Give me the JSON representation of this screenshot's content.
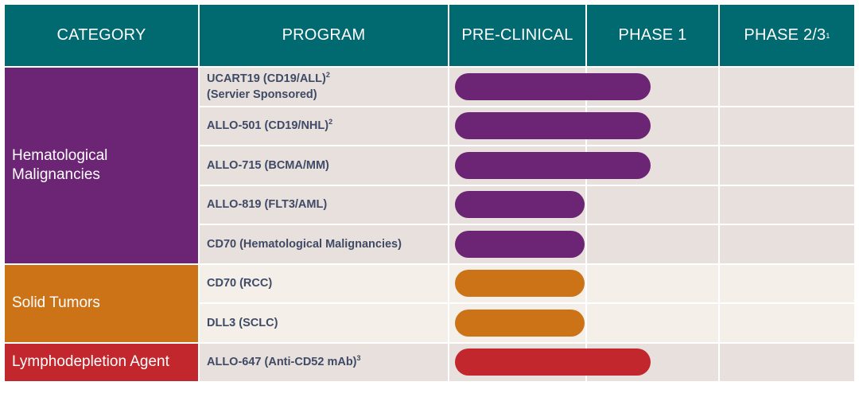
{
  "headers": {
    "category": "CATEGORY",
    "program": "PROGRAM",
    "preclinical": "PRE-CLINICAL",
    "phase1": "PHASE 1",
    "phase23": "PHASE 2/3",
    "phase23_sup": "1"
  },
  "categories": [
    {
      "label_lines": [
        "Hematological",
        "Malignancies"
      ],
      "rows": 5,
      "color": "#6c2574"
    },
    {
      "label_lines": [
        "Solid Tumors"
      ],
      "rows": 2,
      "color": "#cc7318"
    },
    {
      "label_lines": [
        "Lymphodepletion Agent"
      ],
      "rows": 1,
      "color": "#c1272d"
    }
  ],
  "colors": {
    "header_bg": "#006a70",
    "row_heme": "#e8e0dc",
    "row_solid": "#f4efe8",
    "row_lympho": "#e8e0dc"
  },
  "chart_data": {
    "type": "bar",
    "orientation": "horizontal",
    "stages": [
      "PRE-CLINICAL",
      "PHASE 1",
      "PHASE 2/3"
    ],
    "programs": [
      {
        "name": "UCART19 (CD19/ALL)",
        "sup": "2",
        "line2": "(Servier Sponsored)",
        "category": "Hematological Malignancies",
        "progress": 1.5
      },
      {
        "name": "ALLO-501 (CD19/NHL)",
        "sup": "2",
        "line2": "",
        "category": "Hematological Malignancies",
        "progress": 1.5
      },
      {
        "name": "ALLO-715 (BCMA/MM)",
        "sup": "",
        "line2": "",
        "category": "Hematological Malignancies",
        "progress": 1.5
      },
      {
        "name": "ALLO-819 (FLT3/AML)",
        "sup": "",
        "line2": "",
        "category": "Hematological Malignancies",
        "progress": 1.0
      },
      {
        "name": "CD70 (Hematological Malignancies)",
        "sup": "",
        "line2": "",
        "category": "Hematological Malignancies",
        "progress": 1.0
      },
      {
        "name": "CD70 (RCC)",
        "sup": "",
        "line2": "",
        "category": "Solid Tumors",
        "progress": 1.0
      },
      {
        "name": "DLL3 (SCLC)",
        "sup": "",
        "line2": "",
        "category": "Solid Tumors",
        "progress": 1.0
      },
      {
        "name": "ALLO-647 (Anti-CD52 mAb)",
        "sup": "3",
        "line2": "",
        "category": "Lymphodepletion Agent",
        "progress": 1.5
      }
    ]
  }
}
